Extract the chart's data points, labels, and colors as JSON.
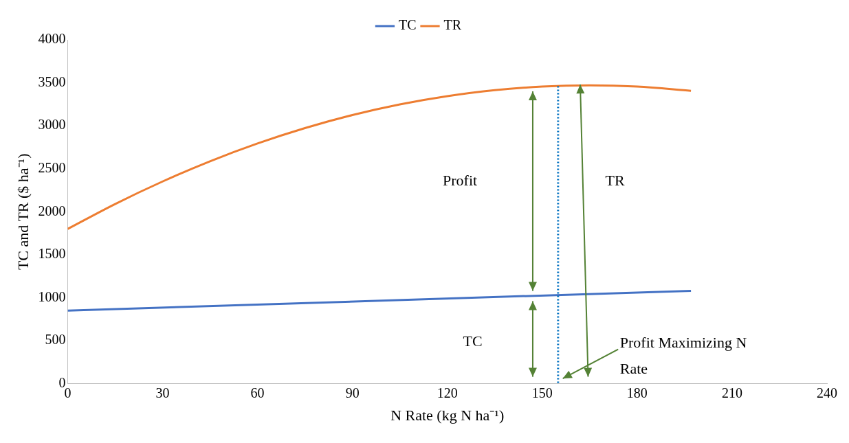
{
  "chart_data": {
    "type": "line",
    "xlabel": "N Rate (kg N ha⁻¹)",
    "ylabel": "TC and TR ($ ha⁻¹)",
    "series": [
      {
        "name": "TC",
        "color": "#4472c4",
        "x": [
          0,
          197
        ],
        "values": [
          850,
          1080
        ]
      },
      {
        "name": "TR",
        "color": "#ed7d31",
        "x": [
          0,
          15,
          30,
          45,
          60,
          75,
          90,
          105,
          120,
          135,
          150,
          165,
          180,
          197
        ],
        "values": [
          1800,
          2090,
          2352,
          2587,
          2794,
          2973,
          3125,
          3249,
          3345,
          3415,
          3456,
          3470,
          3456,
          3407
        ]
      }
    ],
    "xlim": [
      0,
      240
    ],
    "xticks": [
      0,
      30,
      60,
      90,
      120,
      150,
      180,
      210,
      240
    ],
    "ylim": [
      0,
      4000
    ],
    "yticks": [
      0,
      500,
      1000,
      1500,
      2000,
      2500,
      3000,
      3500,
      4000
    ],
    "grid": false,
    "legend": "top",
    "marker": "none",
    "line_style": "solid",
    "ref_lines": [
      {
        "axis": "x",
        "value": 155,
        "label": "Profit Maximizing N Rate",
        "color": "#0070c0",
        "line_style": "dotted"
      }
    ],
    "annotations": [
      "Profit",
      "TR",
      "TC"
    ]
  }
}
